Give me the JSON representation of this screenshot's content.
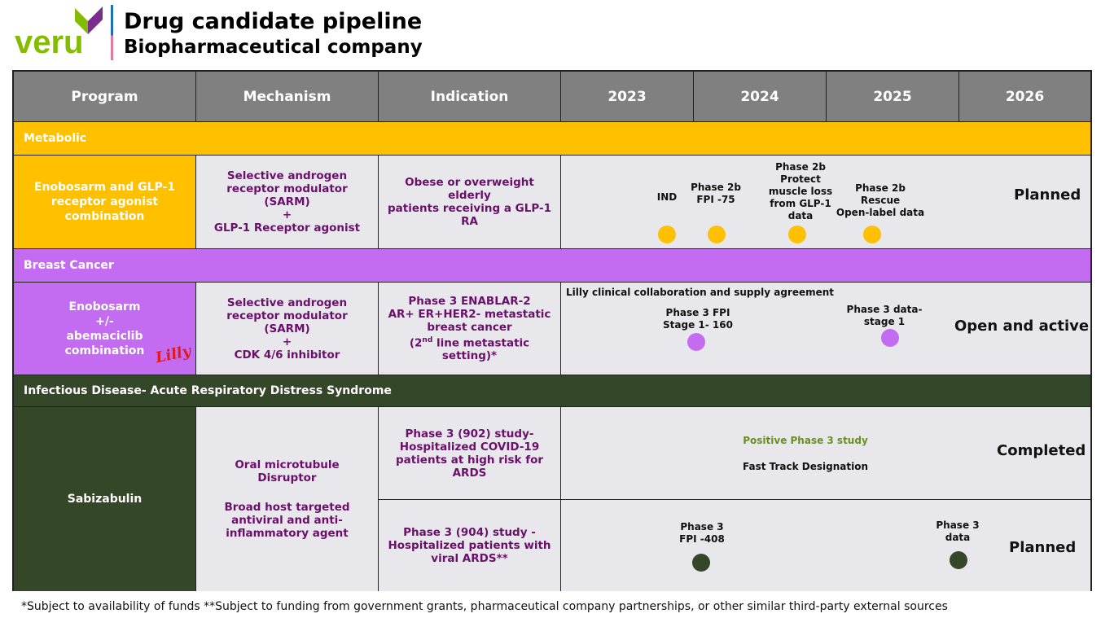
{
  "logo": {
    "text": "veru",
    "colors": {
      "green": "#84bd00",
      "purple": "#7b2d8e",
      "line_blue": "#1f6fb2",
      "line_pink": "#e07aa0"
    }
  },
  "title": "Drug candidate pipeline",
  "subtitle": "Biopharmaceutical company",
  "header": {
    "program": "Program",
    "mechanism": "Mechanism",
    "indication": "Indication",
    "years": [
      "2023",
      "2024",
      "2025",
      "2026"
    ]
  },
  "colors": {
    "header_bg": "#808080",
    "metabolic": "#ffc000",
    "breast": "#c36cf2",
    "infectious": "#344729",
    "cell_bg": "#e8e7ec",
    "text_purple": "#6a0f6a",
    "positive_green": "#6b8e23"
  },
  "metabolic": {
    "band": "Metabolic",
    "program": "Enobosarm and GLP-1 receptor agonist combination",
    "mechanism_lines": [
      "Selective androgen",
      "receptor modulator",
      "(SARM)",
      "+",
      "GLP-1 Receptor agonist"
    ],
    "indication_lines": [
      "Obese or overweight elderly",
      "patients receiving a GLP-1 RA"
    ],
    "milestones": [
      {
        "lines": [
          "IND"
        ]
      },
      {
        "lines": [
          "Phase 2b",
          "FPI -75"
        ]
      },
      {
        "lines": [
          "Phase 2b",
          "Protect",
          "muscle loss",
          "from GLP-1",
          "data"
        ]
      },
      {
        "lines": [
          "Phase 2b",
          "Rescue",
          "Open-label data"
        ]
      }
    ],
    "status": "Planned"
  },
  "breast": {
    "band": "Breast Cancer",
    "program_lines": [
      "Enobosarm",
      "+/-",
      "abemaciclib",
      "combination"
    ],
    "partner_logo_text": "Lilly",
    "mechanism_lines": [
      "Selective androgen",
      "receptor modulator",
      "(SARM)",
      "+",
      "CDK 4/6 inhibitor"
    ],
    "indication_lines": [
      "Phase 3  ENABLAR-2",
      "AR+ ER+HER2- metastatic",
      "breast cancer"
    ],
    "indication_line4_pre": "(2",
    "indication_line4_sup": "nd",
    "indication_line4_post": " line metastatic setting)*",
    "collab_note": "Lilly clinical collaboration and supply agreement",
    "milestones": [
      {
        "lines": [
          "Phase 3 FPI",
          "Stage 1- 160"
        ]
      },
      {
        "lines": [
          "Phase 3 data-",
          "stage 1"
        ]
      }
    ],
    "status": "Open and active"
  },
  "infectious": {
    "band": "Infectious Disease- Acute Respiratory Distress Syndrome",
    "program": "Sabizabulin",
    "mechanism_lines_a": [
      "Oral microtubule",
      "Disruptor"
    ],
    "mechanism_lines_b": [
      "Broad host targeted",
      "antiviral and anti-",
      "inflammatory agent"
    ],
    "study902": {
      "indication_lines": [
        "Phase 3 (902) study-",
        "Hospitalized COVID-19",
        "patients at high risk for",
        "ARDS"
      ],
      "positive": "Positive Phase 3 study",
      "fast_track": "Fast Track Designation",
      "status": "Completed"
    },
    "study904": {
      "indication_lines": [
        "Phase 3 (904) study -",
        "Hospitalized patients with",
        "viral ARDS**"
      ],
      "milestones": [
        {
          "lines": [
            "Phase 3",
            "FPI -408"
          ]
        },
        {
          "lines": [
            "Phase 3",
            "data"
          ]
        }
      ],
      "status": "Planned"
    }
  },
  "footnote": "*Subject to availability of funds **Subject to funding from government grants, pharmaceutical company partnerships, or other similar third-party external sources"
}
